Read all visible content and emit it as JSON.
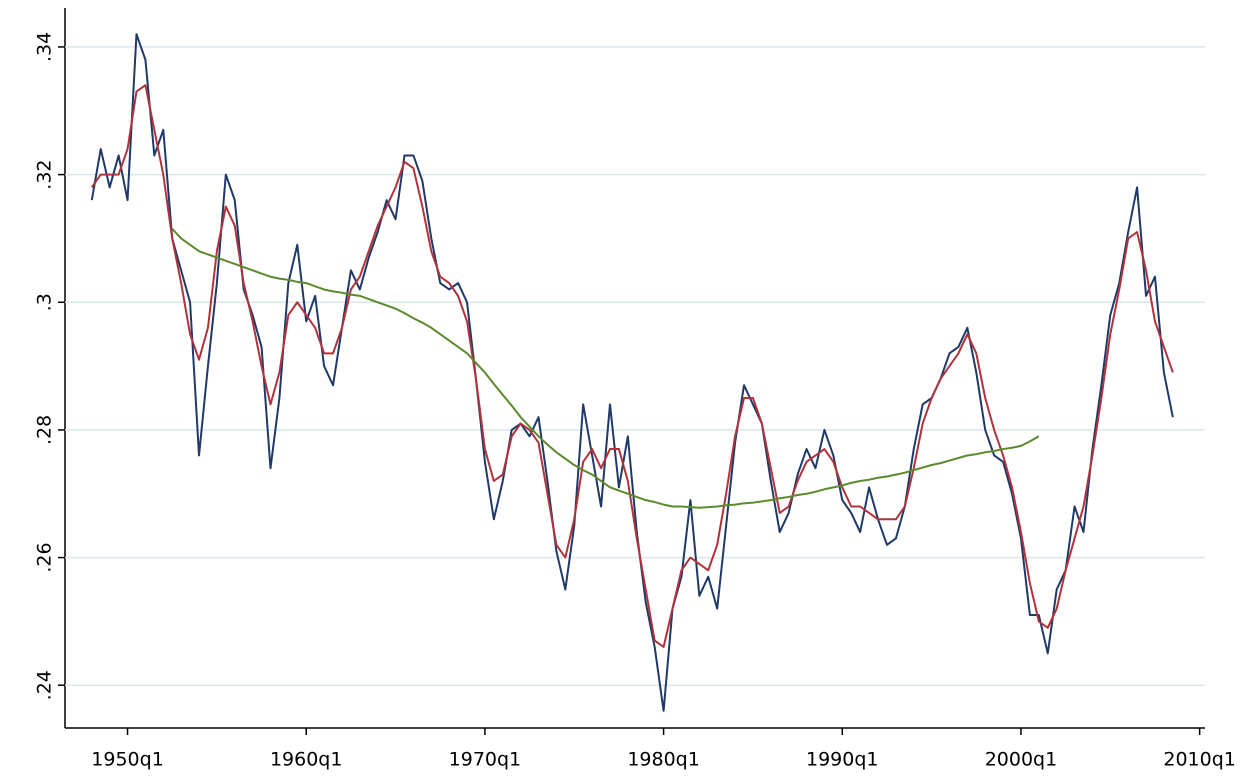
{
  "chart_data": {
    "type": "line",
    "xlim": [
      1946.5,
      2010.3
    ],
    "ylim": [
      0.2333,
      0.3461
    ],
    "xticks": [
      {
        "value": 1950,
        "label": "1950q1"
      },
      {
        "value": 1960,
        "label": "1960q1"
      },
      {
        "value": 1970,
        "label": "1970q1"
      },
      {
        "value": 1980,
        "label": "1980q1"
      },
      {
        "value": 1990,
        "label": "1990q1"
      },
      {
        "value": 2000,
        "label": "2000q1"
      },
      {
        "value": 2010,
        "label": "2010q1"
      }
    ],
    "yticks": [
      {
        "value": 0.24,
        "label": ".24"
      },
      {
        "value": 0.26,
        "label": ".26"
      },
      {
        "value": 0.28,
        "label": ".28"
      },
      {
        "value": 0.3,
        "label": ".3"
      },
      {
        "value": 0.32,
        "label": ".32"
      },
      {
        "value": 0.34,
        "label": ".34"
      }
    ],
    "grid": true,
    "x": [
      1948,
      1948.5,
      1949,
      1949.5,
      1950,
      1950.5,
      1951,
      1951.5,
      1952,
      1952.5,
      1953,
      1953.5,
      1954,
      1954.5,
      1955,
      1955.5,
      1956,
      1956.5,
      1957,
      1957.5,
      1958,
      1958.5,
      1959,
      1959.5,
      1960,
      1960.5,
      1961,
      1961.5,
      1962,
      1962.5,
      1963,
      1963.5,
      1964,
      1964.5,
      1965,
      1965.5,
      1966,
      1966.5,
      1967,
      1967.5,
      1968,
      1968.5,
      1969,
      1969.5,
      1970,
      1970.5,
      1971,
      1971.5,
      1972,
      1972.5,
      1973,
      1973.5,
      1974,
      1974.5,
      1975,
      1975.5,
      1976,
      1976.5,
      1977,
      1977.5,
      1978,
      1978.5,
      1979,
      1979.5,
      1980,
      1980.5,
      1981,
      1981.5,
      1982,
      1982.5,
      1983,
      1983.5,
      1984,
      1984.5,
      1985,
      1985.5,
      1986,
      1986.5,
      1987,
      1987.5,
      1988,
      1988.5,
      1989,
      1989.5,
      1990,
      1990.5,
      1991,
      1991.5,
      1992,
      1992.5,
      1993,
      1993.5,
      1994,
      1994.5,
      1995,
      1995.5,
      1996,
      1996.5,
      1997,
      1997.5,
      1998,
      1998.5,
      1999,
      1999.5,
      2000,
      2000.5,
      2001,
      2001.5,
      2002,
      2002.5,
      2003,
      2003.5,
      2004,
      2004.5,
      2005,
      2005.5,
      2006,
      2006.5,
      2007,
      2007.5,
      2008,
      2008.5
    ],
    "series": [
      {
        "color": "#1f3a68",
        "values": [
          0.316,
          0.324,
          0.318,
          0.323,
          0.316,
          0.342,
          0.338,
          0.323,
          0.327,
          0.31,
          0.305,
          0.3,
          0.276,
          0.29,
          0.303,
          0.32,
          0.316,
          0.302,
          0.298,
          0.293,
          0.274,
          0.285,
          0.303,
          0.309,
          0.297,
          0.301,
          0.29,
          0.287,
          0.296,
          0.305,
          0.302,
          0.307,
          0.311,
          0.316,
          0.313,
          0.323,
          0.323,
          0.319,
          0.31,
          0.303,
          0.302,
          0.303,
          0.3,
          0.288,
          0.275,
          0.266,
          0.272,
          0.28,
          0.281,
          0.279,
          0.282,
          0.272,
          0.261,
          0.255,
          0.265,
          0.284,
          0.276,
          0.268,
          0.284,
          0.271,
          0.279,
          0.264,
          0.253,
          0.246,
          0.236,
          0.252,
          0.257,
          0.269,
          0.254,
          0.257,
          0.252,
          0.265,
          0.278,
          0.287,
          0.284,
          0.281,
          0.272,
          0.264,
          0.267,
          0.273,
          0.277,
          0.274,
          0.28,
          0.276,
          0.269,
          0.267,
          0.264,
          0.271,
          0.266,
          0.262,
          0.263,
          0.268,
          0.277,
          0.284,
          0.285,
          0.288,
          0.292,
          0.293,
          0.296,
          0.289,
          0.28,
          0.276,
          0.275,
          0.27,
          0.263,
          0.251,
          0.251,
          0.245,
          0.255,
          0.258,
          0.268,
          0.264,
          0.277,
          0.287,
          0.298,
          0.303,
          0.311,
          0.318,
          0.301,
          0.304,
          0.289,
          0.282
        ]
      },
      {
        "color": "#b0333c",
        "values": [
          0.318,
          0.32,
          0.32,
          0.32,
          0.324,
          0.333,
          0.334,
          0.327,
          0.32,
          0.31,
          0.303,
          0.295,
          0.291,
          0.296,
          0.308,
          0.315,
          0.312,
          0.303,
          0.297,
          0.29,
          0.284,
          0.289,
          0.298,
          0.3,
          0.298,
          0.296,
          0.292,
          0.292,
          0.296,
          0.302,
          0.304,
          0.308,
          0.312,
          0.315,
          0.318,
          0.322,
          0.321,
          0.315,
          0.308,
          0.304,
          0.303,
          0.301,
          0.297,
          0.288,
          0.277,
          0.272,
          0.273,
          0.279,
          0.281,
          0.28,
          0.278,
          0.27,
          0.262,
          0.26,
          0.266,
          0.275,
          0.277,
          0.274,
          0.277,
          0.277,
          0.272,
          0.263,
          0.255,
          0.247,
          0.246,
          0.252,
          0.258,
          0.26,
          0.259,
          0.258,
          0.262,
          0.27,
          0.279,
          0.285,
          0.285,
          0.281,
          0.274,
          0.267,
          0.268,
          0.272,
          0.275,
          0.276,
          0.277,
          0.275,
          0.271,
          0.268,
          0.268,
          0.267,
          0.266,
          0.266,
          0.266,
          0.268,
          0.274,
          0.281,
          0.285,
          0.288,
          0.29,
          0.292,
          0.295,
          0.292,
          0.285,
          0.28,
          0.276,
          0.271,
          0.264,
          0.256,
          0.25,
          0.249,
          0.252,
          0.258,
          0.263,
          0.268,
          0.276,
          0.285,
          0.295,
          0.302,
          0.31,
          0.311,
          0.305,
          0.297,
          0.293,
          0.289
        ]
      },
      {
        "color": "#5b8a2c",
        "values": [
          null,
          null,
          null,
          null,
          null,
          null,
          null,
          null,
          null,
          0.3115,
          0.31,
          0.309,
          0.308,
          0.3075,
          0.307,
          0.3065,
          0.306,
          0.3055,
          0.305,
          0.3045,
          0.304,
          0.3037,
          0.3035,
          0.3032,
          0.303,
          0.3025,
          0.302,
          0.3017,
          0.3015,
          0.3012,
          0.301,
          0.3005,
          0.3,
          0.2995,
          0.299,
          0.2983,
          0.2975,
          0.2968,
          0.296,
          0.295,
          0.294,
          0.293,
          0.292,
          0.2905,
          0.289,
          0.2872,
          0.2855,
          0.2838,
          0.282,
          0.2805,
          0.279,
          0.2777,
          0.2765,
          0.2755,
          0.2745,
          0.2737,
          0.273,
          0.272,
          0.271,
          0.2705,
          0.27,
          0.2695,
          0.269,
          0.2687,
          0.2683,
          0.268,
          0.268,
          0.2679,
          0.2678,
          0.2679,
          0.268,
          0.2682,
          0.2683,
          0.2685,
          0.2686,
          0.2688,
          0.269,
          0.2693,
          0.2695,
          0.2698,
          0.27,
          0.2703,
          0.2707,
          0.271,
          0.2713,
          0.2717,
          0.272,
          0.2722,
          0.2725,
          0.2727,
          0.273,
          0.2733,
          0.2737,
          0.2741,
          0.2745,
          0.2748,
          0.2752,
          0.2756,
          0.276,
          0.2762,
          0.2765,
          0.2767,
          0.277,
          0.2772,
          0.2775,
          0.2782,
          0.279,
          null,
          null,
          null,
          null,
          null,
          null,
          null,
          null,
          null,
          null,
          null,
          null,
          null,
          null,
          null
        ]
      }
    ]
  }
}
